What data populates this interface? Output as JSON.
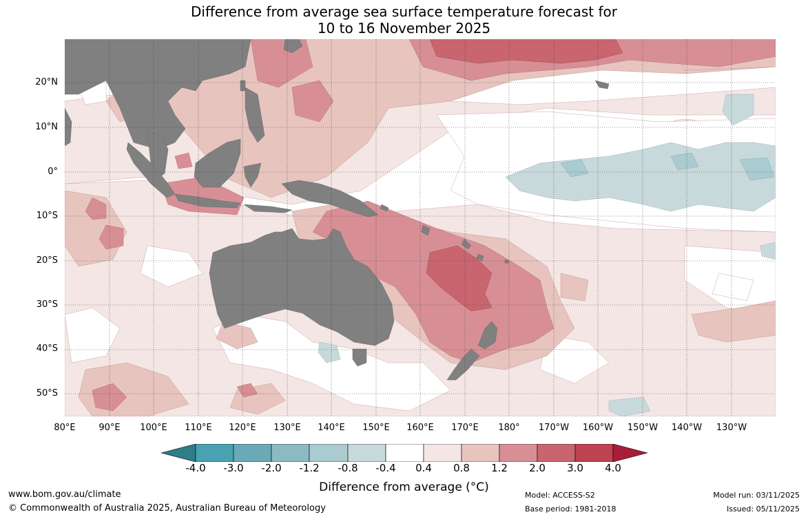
{
  "title": {
    "line1": "Difference from average sea surface temperature forecast for",
    "line2": "10 to 16 November 2025"
  },
  "map": {
    "latitude_labels": [
      "20°N",
      "10°N",
      "0°",
      "10°S",
      "20°S",
      "30°S",
      "40°S",
      "50°S"
    ],
    "longitude_labels": [
      "80°E",
      "90°E",
      "100°E",
      "110°E",
      "120°E",
      "130°E",
      "140°E",
      "150°E",
      "160°E",
      "170°E",
      "180°",
      "170°W",
      "160°W",
      "150°W",
      "140°W",
      "130°W"
    ],
    "land_color": "#808080"
  },
  "colorbar": {
    "ticks": [
      "-4.0",
      "-3.0",
      "-2.0",
      "-1.2",
      "-0.8",
      "-0.4",
      "0.4",
      "0.8",
      "1.2",
      "2.0",
      "3.0",
      "4.0"
    ],
    "colors": [
      "#2e7d87",
      "#48a2b1",
      "#6aaab6",
      "#8cbac2",
      "#aacbcf",
      "#c8d9dc",
      "#ffffff",
      "#f4e6e4",
      "#e8c4bf",
      "#d78f95",
      "#c9656e",
      "#be4350",
      "#a91d3a"
    ],
    "label": "Difference from average (°C)"
  },
  "footer": {
    "url": "www.bom.gov.au/climate",
    "copyright": "© Commonwealth of Australia 2025, Australian Bureau of Meteorology",
    "model": "Model: ACCESS-S2",
    "base_period": "Base period: 1981-2018",
    "model_run": "Model run: 03/11/2025",
    "issued": "Issued: 05/11/2025"
  }
}
